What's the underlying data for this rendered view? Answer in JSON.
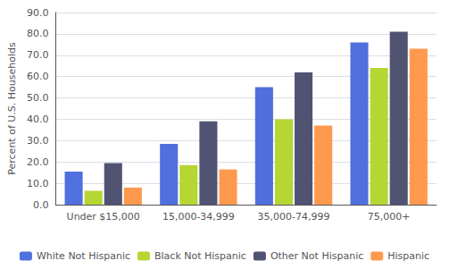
{
  "chart_data": {
    "type": "bar",
    "ylabel": "Percent of U.S. Households",
    "categories": [
      "Under $15,000",
      "15,000-34,999",
      "35,000-74,999",
      "75,000+"
    ],
    "series": [
      {
        "name": "White Not Hispanic",
        "values": [
          15.5,
          28.5,
          55.0,
          76.0
        ]
      },
      {
        "name": "Black Not Hispanic",
        "values": [
          6.5,
          18.5,
          40.0,
          64.0
        ]
      },
      {
        "name": "Other Not Hispanic",
        "values": [
          19.5,
          39.0,
          62.0,
          81.0
        ]
      },
      {
        "name": "Hispanic",
        "values": [
          8.0,
          16.5,
          37.0,
          73.0
        ]
      }
    ],
    "ylim": [
      0,
      90
    ],
    "yticks": [
      {
        "value": 0,
        "label": "0.0"
      },
      {
        "value": 10,
        "label": "10.0"
      },
      {
        "value": 20,
        "label": "20.0"
      },
      {
        "value": 30,
        "label": "30.0"
      },
      {
        "value": 40,
        "label": "40.0"
      },
      {
        "value": 50,
        "label": "50.0"
      },
      {
        "value": 60,
        "label": "60.0"
      },
      {
        "value": 70,
        "label": "70.0"
      },
      {
        "value": 80,
        "label": "80.0"
      },
      {
        "value": 90,
        "label": "90.0"
      }
    ],
    "grid": true,
    "legend": "bottom"
  }
}
